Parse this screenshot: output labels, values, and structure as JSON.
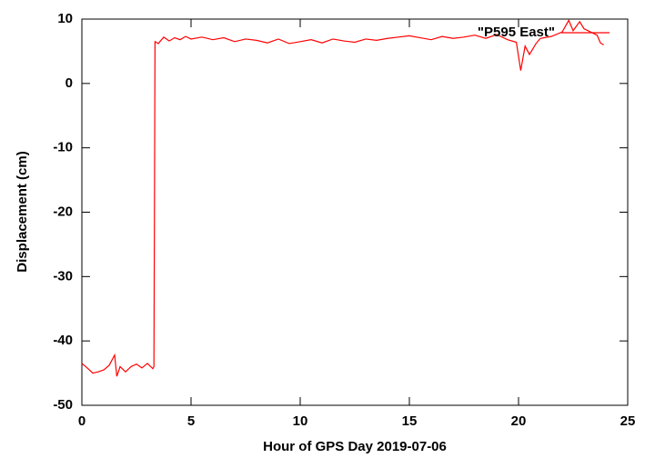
{
  "chart_data": {
    "type": "line",
    "x_label": "Hour of GPS Day 2019-07-06",
    "y_label": "Displacement (cm)",
    "legend": "top-right",
    "xlim": [
      0,
      25
    ],
    "xticks": [
      0,
      5,
      10,
      15,
      20,
      25
    ],
    "ylim": [
      -50,
      10
    ],
    "yticks": [
      -50,
      -40,
      -30,
      -20,
      -10,
      0,
      10
    ],
    "x": [
      0,
      0.25,
      0.5,
      0.75,
      1,
      1.25,
      1.5,
      1.6,
      1.75,
      2,
      2.25,
      2.5,
      2.75,
      3,
      3.25,
      3.3,
      3.35,
      3.5,
      3.75,
      4,
      4.25,
      4.5,
      4.75,
      5,
      5.5,
      6,
      6.5,
      7,
      7.5,
      8,
      8.5,
      9,
      9.5,
      10,
      10.5,
      11,
      11.5,
      12,
      12.5,
      13,
      13.5,
      14,
      14.5,
      15,
      15.5,
      16,
      16.5,
      17,
      17.5,
      18,
      18.5,
      19,
      19.5,
      19.9,
      20.1,
      20.3,
      20.5,
      20.8,
      21,
      21.5,
      22,
      22.3,
      22.5,
      22.8,
      23,
      23.3,
      23.6,
      23.75,
      23.9
    ],
    "series": [
      {
        "name": "\"P595 East\"",
        "color": "#ff0000",
        "values": [
          -43.5,
          -44.2,
          -45,
          -44.8,
          -44.5,
          -43.8,
          -42.2,
          -45.5,
          -44,
          -44.8,
          -44,
          -43.6,
          -44.2,
          -43.5,
          -44.3,
          -44,
          6.5,
          6.2,
          7.2,
          6.6,
          7.1,
          6.8,
          7.3,
          6.9,
          7.2,
          6.8,
          7.1,
          6.5,
          6.9,
          6.7,
          6.3,
          6.9,
          6.2,
          6.5,
          6.8,
          6.3,
          6.9,
          6.6,
          6.4,
          6.9,
          6.7,
          7.0,
          7.2,
          7.4,
          7.1,
          6.8,
          7.3,
          7.0,
          7.2,
          7.5,
          7.0,
          7.6,
          6.8,
          6.4,
          2.0,
          5.8,
          4.5,
          6.2,
          7.0,
          7.3,
          8.0,
          9.8,
          8.2,
          9.6,
          8.5,
          8.0,
          7.5,
          6.3,
          6.0
        ]
      }
    ]
  }
}
